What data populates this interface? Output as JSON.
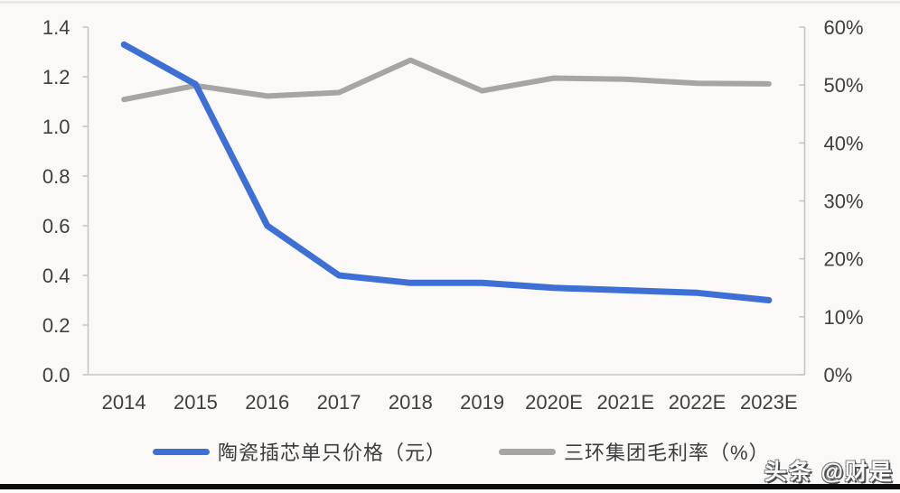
{
  "chart_data": {
    "type": "line",
    "title": "",
    "categories": [
      "2014",
      "2015",
      "2016",
      "2017",
      "2018",
      "2019",
      "2020E",
      "2021E",
      "2022E",
      "2023E"
    ],
    "series": [
      {
        "name": "陶瓷插芯单只价格（元）",
        "axis": "left",
        "color": "#3E6FD5",
        "values": [
          1.33,
          1.17,
          0.6,
          0.4,
          0.37,
          0.37,
          0.35,
          0.34,
          0.33,
          0.3
        ]
      },
      {
        "name": "三环集团毛利率（%）",
        "axis": "right",
        "color": "#A7A4A1",
        "values": [
          47.5,
          49.9,
          48.1,
          48.7,
          54.3,
          49.0,
          51.2,
          51.0,
          50.3,
          50.2
        ]
      }
    ],
    "left_axis": {
      "min": 0,
      "max": 1.4,
      "ticks": [
        "1.4",
        "1.2",
        "1.0",
        "0.8",
        "0.6",
        "0.4",
        "0.2",
        "0.0"
      ]
    },
    "right_axis": {
      "min": 0,
      "max": 60,
      "ticks": [
        "60%",
        "50%",
        "40%",
        "30%",
        "20%",
        "10%",
        "0%"
      ]
    },
    "grid": false,
    "legend_position": "bottom"
  },
  "legend": {
    "items": [
      {
        "label": "陶瓷插芯单只价格（元）",
        "color": "#3E6FD5"
      },
      {
        "label": "三环集团毛利率（%）",
        "color": "#A7A4A1"
      }
    ]
  },
  "watermark": {
    "text": "头条 @财是"
  },
  "colors": {
    "background": "#FAF9F7",
    "axis": "#C7C5C2",
    "tick_label": "#3F3F3F",
    "price_line": "#3E6FD5",
    "margin_line": "#A7A4A1",
    "bottom_bar": "#0B0B0B"
  }
}
